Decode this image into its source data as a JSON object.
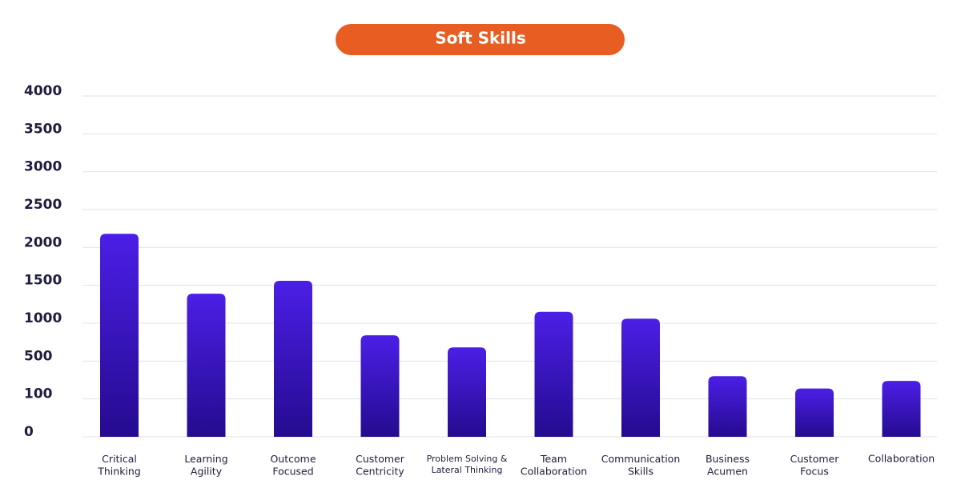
{
  "chart_data": {
    "type": "bar",
    "title": "Soft Skills",
    "categories": [
      "Critical\nThinking",
      "Learning\nAgility",
      "Outcome\nFocused",
      "Customer\nCentricity",
      "Problem Solving &\nLateral Thinking",
      "Team\nCollaboration",
      "Communication\nSkills",
      "Business\nAcumen",
      "Customer\nFocus",
      "Collaboration"
    ],
    "values": [
      2180,
      1390,
      1560,
      840,
      680,
      1150,
      1060,
      340,
      210,
      290
    ],
    "color": "#4a1ee3",
    "ylim": [
      0,
      4000
    ],
    "yticks": [
      0,
      100,
      500,
      1000,
      1500,
      2000,
      2500,
      3000,
      3500,
      4000
    ],
    "grid": true
  }
}
